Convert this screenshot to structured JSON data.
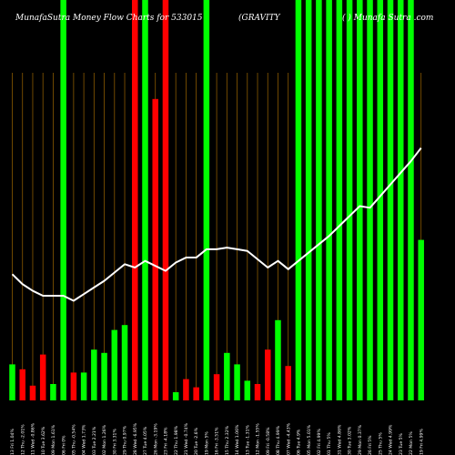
{
  "chart_data": {
    "type": "bar",
    "title_left": "MunafaSutra  Money Flow  Charts for 533015",
    "title_mid": "(GRAVITY",
    "title_right": "(   ) Munafa Sutra .com",
    "colors": {
      "background": "#000000",
      "up": "#00ff00",
      "down": "#ff0000",
      "grid": "#8b5a00",
      "line": "#ffffff"
    },
    "bars": [
      {
        "label": "13 Fri 1.04%",
        "color": "up",
        "value": 11,
        "full": false
      },
      {
        "label": "12 Thu -2.01%",
        "color": "down",
        "value": 9.5,
        "full": false
      },
      {
        "label": "11 Wed -0.86%",
        "color": "down",
        "value": 4.5,
        "full": false
      },
      {
        "label": "10 Tue 3.62%",
        "color": "down",
        "value": 14,
        "full": false
      },
      {
        "label": "09 Mon 1.61%",
        "color": "up",
        "value": 5,
        "full": false
      },
      {
        "label": "06 Fri 0%",
        "color": "up",
        "value": 100,
        "full": true
      },
      {
        "label": "05 Thu -0.54%",
        "color": "down",
        "value": 8.5,
        "full": false
      },
      {
        "label": "04 Wed 1.73%",
        "color": "up",
        "value": 8.5,
        "full": false
      },
      {
        "label": "03 Tue 2.21%",
        "color": "up",
        "value": 15.5,
        "full": false
      },
      {
        "label": "02 Mon 1.26%",
        "color": "up",
        "value": 14.5,
        "full": false
      },
      {
        "label": "30 Fri 3.31%",
        "color": "up",
        "value": 21.5,
        "full": false
      },
      {
        "label": "29 Thu 0.97%",
        "color": "up",
        "value": 23,
        "full": false
      },
      {
        "label": "28 Wed -6.95%",
        "color": "down",
        "value": 100,
        "full": true
      },
      {
        "label": "27 Tue 4.05%",
        "color": "up",
        "value": 100,
        "full": true
      },
      {
        "label": "26 Mon -3.19%",
        "color": "down",
        "value": 92,
        "full": false
      },
      {
        "label": "23 Fri -4.18%",
        "color": "down",
        "value": 100,
        "full": true
      },
      {
        "label": "22 Thu 1.98%",
        "color": "up",
        "value": 2.5,
        "full": false
      },
      {
        "label": "21 Wed -0.74%",
        "color": "down",
        "value": 6.5,
        "full": false
      },
      {
        "label": "20 Tue -2.6%",
        "color": "down",
        "value": 4,
        "full": false
      },
      {
        "label": "19 Mon 5%",
        "color": "up",
        "value": 100,
        "full": true
      },
      {
        "label": "16 Fri -3.51%",
        "color": "down",
        "value": 8,
        "full": false
      },
      {
        "label": "15 Thu 2.32%",
        "color": "up",
        "value": 14.5,
        "full": false
      },
      {
        "label": "14 Wed 1.06%",
        "color": "up",
        "value": 11,
        "full": false
      },
      {
        "label": "13 Tue -1.31%",
        "color": "up",
        "value": 6,
        "full": false
      },
      {
        "label": "12 Mon -1.55%",
        "color": "down",
        "value": 5,
        "full": false
      },
      {
        "label": "09 Fri -0.58%",
        "color": "down",
        "value": 15.5,
        "full": false
      },
      {
        "label": "08 Thu 4.99%",
        "color": "up",
        "value": 24.5,
        "full": false
      },
      {
        "label": "07 Wed -4.43%",
        "color": "down",
        "value": 10.5,
        "full": false
      },
      {
        "label": "06 Tue 4.9%",
        "color": "up",
        "value": 100,
        "full": true
      },
      {
        "label": "05 Mon 5.01%",
        "color": "up",
        "value": 100,
        "full": true
      },
      {
        "label": "02 Fri 4.99%",
        "color": "up",
        "value": 100,
        "full": true
      },
      {
        "label": "01 Thu 5%",
        "color": "up",
        "value": 100,
        "full": true
      },
      {
        "label": "31 Wed 4.86%",
        "color": "up",
        "value": 100,
        "full": true
      },
      {
        "label": "30 Tue 3.02%",
        "color": "up",
        "value": 100,
        "full": true
      },
      {
        "label": "29 Mon 0.37%",
        "color": "up",
        "value": 100,
        "full": true
      },
      {
        "label": "26 Fri 5%",
        "color": "up",
        "value": 100,
        "full": true
      },
      {
        "label": "25 Thu 5%",
        "color": "up",
        "value": 100,
        "full": true
      },
      {
        "label": "24 Wed 4.99%",
        "color": "up",
        "value": 100,
        "full": true
      },
      {
        "label": "23 Tue 5%",
        "color": "up",
        "value": 100,
        "full": true
      },
      {
        "label": "22 Mon 5%",
        "color": "up",
        "value": 100,
        "full": true
      },
      {
        "label": "19 Fri 4.99%",
        "color": "up",
        "value": 49,
        "full": false
      }
    ],
    "line": [
      38,
      35,
      33,
      31.5,
      31.5,
      31.5,
      30,
      32,
      34,
      36,
      38.5,
      41,
      40,
      42,
      40.5,
      39,
      41.5,
      43,
      43,
      45.5,
      45.5,
      46,
      45.5,
      45,
      42.5,
      40,
      42,
      39.5,
      42,
      44.5,
      47,
      49.5,
      52.5,
      55.5,
      58.5,
      58,
      61.5,
      65,
      68.5,
      72,
      76
    ]
  }
}
